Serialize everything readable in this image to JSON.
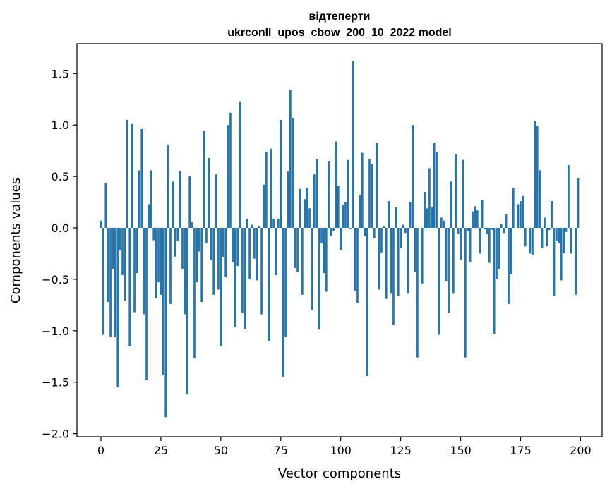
{
  "chart_data": {
    "type": "bar",
    "title": "відтеперти",
    "subtitle": "ukrconll_upos_cbow_200_10_2022 model",
    "xlabel": "Vector components",
    "ylabel": "Components values",
    "xlim": [
      -10,
      209
    ],
    "ylim": [
      -2.03,
      1.79
    ],
    "xticks": [
      0,
      25,
      50,
      75,
      100,
      125,
      150,
      175,
      200
    ],
    "yticks": [
      -2.0,
      -1.5,
      -1.0,
      -0.5,
      0.0,
      0.5,
      1.0,
      1.5
    ],
    "ytick_labels": [
      "−2.0",
      "−1.5",
      "−1.0",
      "−0.5",
      "0.0",
      "0.5",
      "1.0",
      "1.5"
    ],
    "bar_color": "#1f77b4",
    "grid": false,
    "x": [
      0,
      1,
      2,
      3,
      4,
      5,
      6,
      7,
      8,
      9,
      10,
      11,
      12,
      13,
      14,
      15,
      16,
      17,
      18,
      19,
      20,
      21,
      22,
      23,
      24,
      25,
      26,
      27,
      28,
      29,
      30,
      31,
      32,
      33,
      34,
      35,
      36,
      37,
      38,
      39,
      40,
      41,
      42,
      43,
      44,
      45,
      46,
      47,
      48,
      49,
      50,
      51,
      52,
      53,
      54,
      55,
      56,
      57,
      58,
      59,
      60,
      61,
      62,
      63,
      64,
      65,
      66,
      67,
      68,
      69,
      70,
      71,
      72,
      73,
      74,
      75,
      76,
      77,
      78,
      79,
      80,
      81,
      82,
      83,
      84,
      85,
      86,
      87,
      88,
      89,
      90,
      91,
      92,
      93,
      94,
      95,
      96,
      97,
      98,
      99,
      100,
      101,
      102,
      103,
      104,
      105,
      106,
      107,
      108,
      109,
      110,
      111,
      112,
      113,
      114,
      115,
      116,
      117,
      118,
      119,
      120,
      121,
      122,
      123,
      124,
      125,
      126,
      127,
      128,
      129,
      130,
      131,
      132,
      133,
      134,
      135,
      136,
      137,
      138,
      139,
      140,
      141,
      142,
      143,
      144,
      145,
      146,
      147,
      148,
      149,
      150,
      151,
      152,
      153,
      154,
      155,
      156,
      157,
      158,
      159,
      160,
      161,
      162,
      163,
      164,
      165,
      166,
      167,
      168,
      169,
      170,
      171,
      172,
      173,
      174,
      175,
      176,
      177,
      178,
      179,
      180,
      181,
      182,
      183,
      184,
      185,
      186,
      187,
      188,
      189,
      190,
      191,
      192,
      193,
      194,
      195,
      196,
      197,
      198,
      199
    ],
    "values": [
      0.07,
      -1.04,
      0.44,
      -0.72,
      -1.06,
      -0.4,
      -1.06,
      -1.55,
      -0.22,
      -0.46,
      -0.71,
      1.05,
      -1.15,
      1.01,
      -0.82,
      -0.44,
      0.56,
      0.96,
      -0.84,
      -1.48,
      0.23,
      0.56,
      -0.12,
      -0.68,
      -0.53,
      -0.65,
      -1.43,
      -1.84,
      0.81,
      -0.74,
      0.45,
      -0.28,
      -0.13,
      0.55,
      -0.4,
      -0.84,
      -1.62,
      0.5,
      0.06,
      -1.27,
      -0.53,
      -0.23,
      -0.72,
      0.94,
      -0.15,
      0.68,
      -0.31,
      -0.65,
      0.52,
      -0.6,
      -1.15,
      -0.28,
      -0.48,
      1.0,
      1.12,
      -0.33,
      -0.96,
      -0.37,
      1.23,
      -0.83,
      -0.98,
      0.09,
      -0.5,
      0.03,
      -0.3,
      -0.51,
      0.02,
      -0.84,
      0.42,
      0.74,
      -1.1,
      0.77,
      0.09,
      -0.46,
      0.09,
      1.05,
      -1.45,
      -1.06,
      0.55,
      1.34,
      1.07,
      -0.39,
      -0.43,
      0.38,
      -0.65,
      0.28,
      0.39,
      0.19,
      -0.8,
      0.52,
      0.67,
      -0.99,
      -0.15,
      -0.44,
      -0.62,
      0.65,
      -0.08,
      -0.03,
      0.84,
      0.41,
      -0.22,
      0.22,
      0.25,
      0.66,
      -0.01,
      1.62,
      -0.61,
      -0.73,
      0.32,
      0.73,
      -0.08,
      -1.44,
      0.67,
      0.62,
      -0.1,
      0.83,
      -0.6,
      -0.24,
      0.02,
      -0.69,
      0.26,
      -0.64,
      -0.94,
      0.2,
      -0.66,
      -0.2,
      0.03,
      -0.05,
      -0.64,
      0.25,
      1.0,
      -0.43,
      -1.26,
      0.0,
      -0.54,
      0.35,
      0.19,
      0.58,
      0.2,
      0.83,
      0.74,
      -1.04,
      0.1,
      0.07,
      -0.52,
      -0.83,
      0.45,
      -0.64,
      0.72,
      -0.06,
      -0.31,
      0.66,
      -1.26,
      -0.03,
      -0.33,
      0.16,
      0.21,
      0.17,
      -0.25,
      0.27,
      -0.01,
      -0.06,
      -0.34,
      -0.02,
      -1.03,
      -0.5,
      -0.4,
      0.04,
      -0.05,
      0.13,
      -0.74,
      -0.45,
      0.39,
      0.0,
      0.23,
      0.26,
      0.31,
      -0.18,
      0.0,
      -0.25,
      -0.26,
      1.04,
      0.99,
      0.56,
      -0.2,
      0.1,
      -0.18,
      -0.02,
      0.26,
      -0.66,
      -0.13,
      -0.15,
      -0.51,
      -0.24,
      -0.04,
      0.61,
      -0.25,
      0.0,
      -0.65,
      0.48
    ]
  }
}
